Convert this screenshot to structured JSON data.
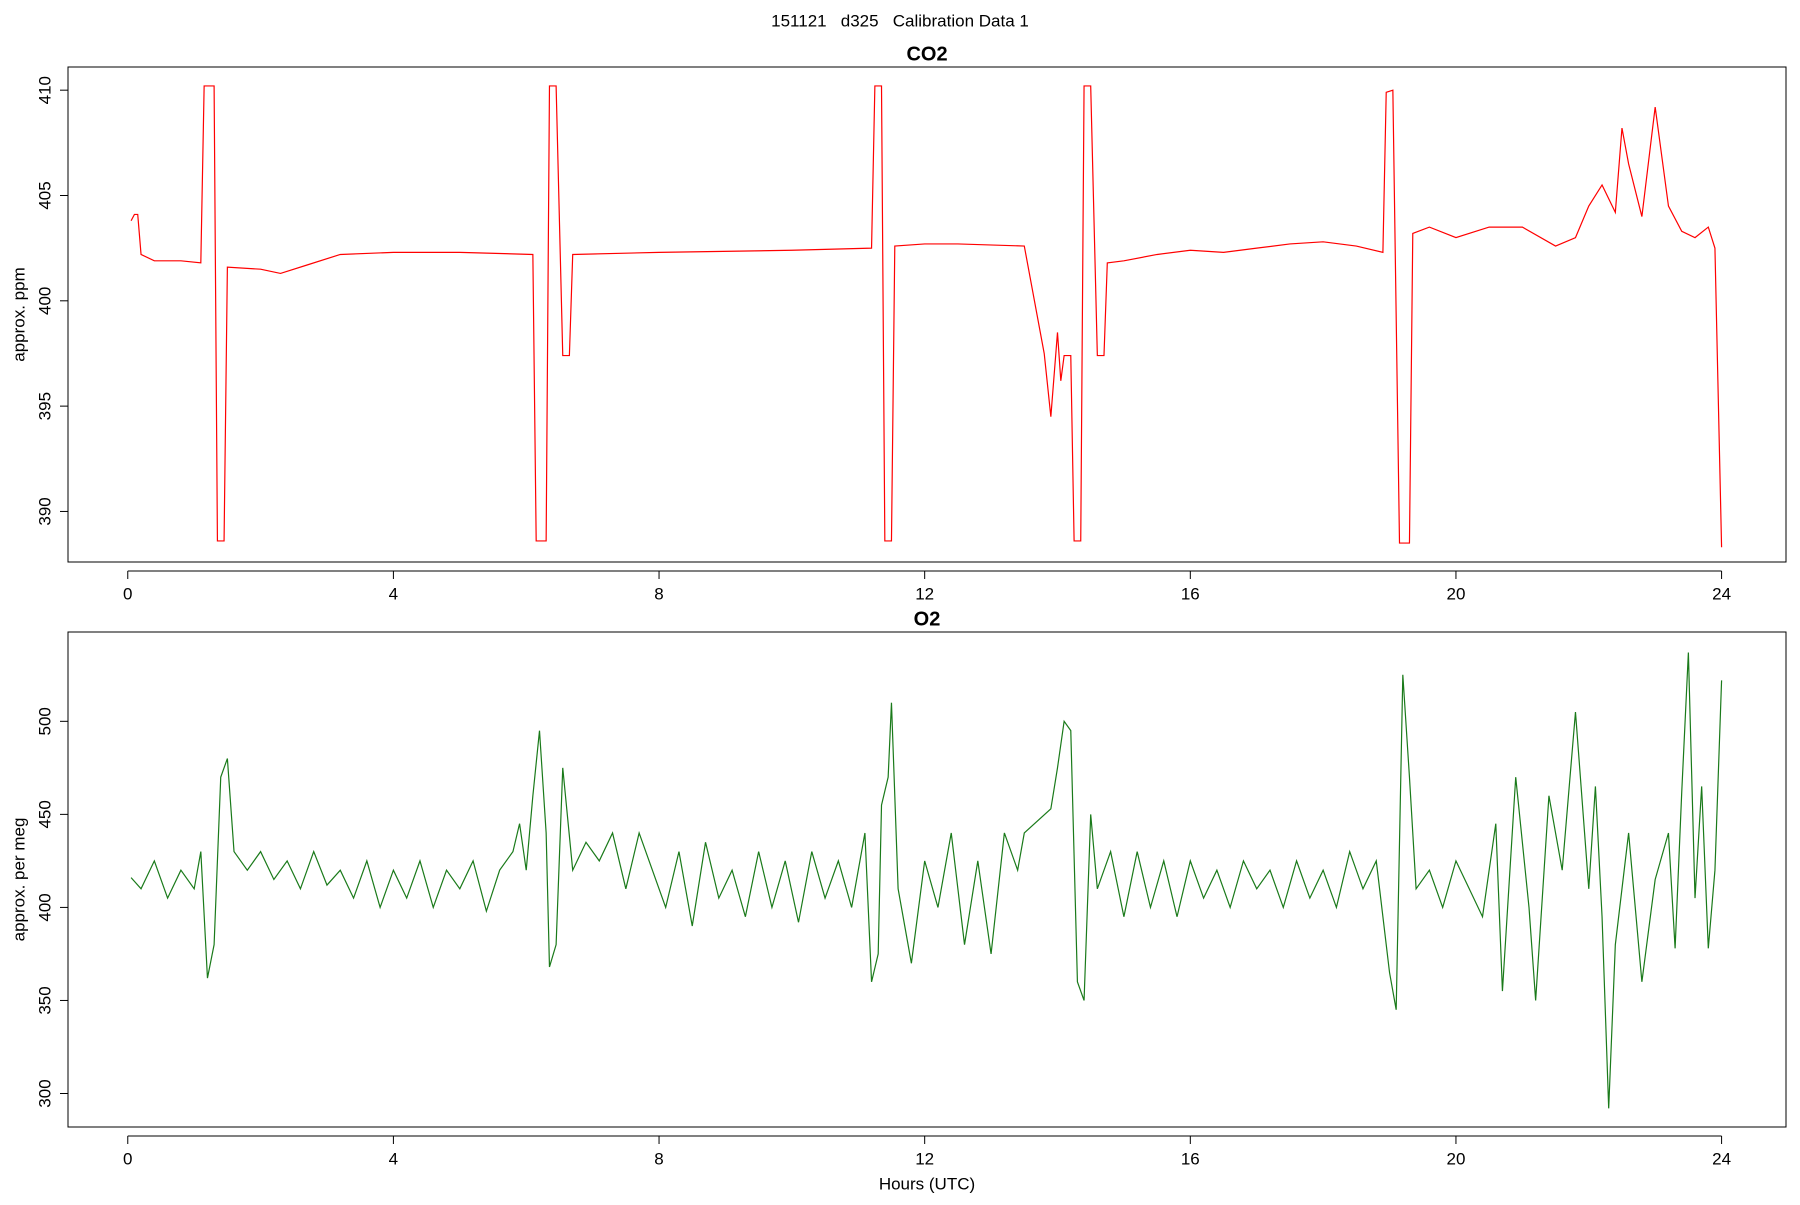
{
  "title": "151121   d325   Calibration Data 1",
  "chart_data": [
    {
      "type": "line",
      "title": "CO2",
      "ylabel": "approx. ppm",
      "color": "#ff0000",
      "xlim": [
        -0.9,
        24.97
      ],
      "ylim": [
        387.6,
        411.1
      ],
      "xticks": [
        0,
        4,
        8,
        12,
        16,
        20,
        24
      ],
      "yticks": [
        390,
        395,
        400,
        405,
        410
      ],
      "x": [
        0.05,
        0.1,
        0.15,
        0.2,
        0.4,
        0.8,
        1.1,
        1.15,
        1.3,
        1.35,
        1.45,
        1.5,
        2.0,
        2.3,
        2.7,
        3.2,
        4.0,
        5.0,
        6.1,
        6.15,
        6.3,
        6.35,
        6.45,
        6.55,
        6.65,
        6.7,
        8.0,
        10.0,
        11.2,
        11.25,
        11.35,
        11.4,
        11.5,
        11.55,
        12.0,
        12.5,
        13.5,
        13.8,
        13.9,
        14.0,
        14.05,
        14.1,
        14.2,
        14.25,
        14.35,
        14.4,
        14.5,
        14.6,
        14.7,
        14.75,
        15.0,
        15.5,
        16.0,
        16.5,
        17.0,
        17.5,
        18.0,
        18.5,
        18.9,
        18.95,
        19.05,
        19.15,
        19.3,
        19.35,
        19.6,
        20.0,
        20.5,
        21.0,
        21.5,
        21.8,
        22.0,
        22.2,
        22.4,
        22.5,
        22.6,
        22.8,
        23.0,
        23.2,
        23.4,
        23.6,
        23.8,
        23.9,
        24.0
      ],
      "values": [
        403.8,
        404.1,
        404.1,
        402.2,
        401.9,
        401.9,
        401.8,
        410.2,
        410.2,
        388.6,
        388.6,
        401.6,
        401.5,
        401.3,
        401.7,
        402.2,
        402.3,
        402.3,
        402.2,
        388.6,
        388.6,
        410.2,
        410.2,
        397.4,
        397.4,
        402.2,
        402.3,
        402.4,
        402.5,
        410.2,
        410.2,
        388.6,
        388.6,
        402.6,
        402.7,
        402.7,
        402.6,
        397.5,
        394.5,
        398.5,
        396.2,
        397.4,
        397.4,
        388.6,
        388.6,
        410.2,
        410.2,
        397.4,
        397.4,
        401.8,
        401.9,
        402.2,
        402.4,
        402.3,
        402.5,
        402.7,
        402.8,
        402.6,
        402.3,
        409.9,
        410.0,
        388.5,
        388.5,
        403.2,
        403.5,
        403.0,
        403.5,
        403.5,
        402.6,
        403.0,
        404.5,
        405.5,
        404.2,
        408.2,
        406.5,
        404.0,
        409.2,
        404.5,
        403.3,
        403.0,
        403.5,
        402.5,
        388.3
      ]
    },
    {
      "type": "line",
      "title": "O2",
      "ylabel": "approx. per meg",
      "xlabel": "Hours (UTC)",
      "color": "#1a7a1a",
      "xlim": [
        -0.9,
        24.97
      ],
      "ylim": [
        282,
        548
      ],
      "xticks": [
        0,
        4,
        8,
        12,
        16,
        20,
        24
      ],
      "yticks": [
        300,
        350,
        400,
        450,
        500
      ],
      "x": [
        0.05,
        0.2,
        0.4,
        0.6,
        0.8,
        1.0,
        1.1,
        1.2,
        1.3,
        1.4,
        1.5,
        1.6,
        1.8,
        2.0,
        2.2,
        2.4,
        2.6,
        2.8,
        3.0,
        3.2,
        3.4,
        3.6,
        3.8,
        4.0,
        4.2,
        4.4,
        4.6,
        4.8,
        5.0,
        5.2,
        5.4,
        5.6,
        5.8,
        5.9,
        6.0,
        6.1,
        6.2,
        6.3,
        6.35,
        6.45,
        6.55,
        6.7,
        6.9,
        7.1,
        7.3,
        7.5,
        7.7,
        7.9,
        8.1,
        8.3,
        8.5,
        8.7,
        8.9,
        9.1,
        9.3,
        9.5,
        9.7,
        9.9,
        10.1,
        10.3,
        10.5,
        10.7,
        10.9,
        11.1,
        11.2,
        11.3,
        11.35,
        11.45,
        11.5,
        11.6,
        11.8,
        12.0,
        12.2,
        12.4,
        12.6,
        12.8,
        13.0,
        13.2,
        13.4,
        13.5,
        13.9,
        14.0,
        14.1,
        14.2,
        14.3,
        14.4,
        14.5,
        14.6,
        14.8,
        15.0,
        15.2,
        15.4,
        15.6,
        15.8,
        16.0,
        16.2,
        16.4,
        16.6,
        16.8,
        17.0,
        17.2,
        17.4,
        17.6,
        17.8,
        18.0,
        18.2,
        18.4,
        18.6,
        18.8,
        19.0,
        19.1,
        19.2,
        19.3,
        19.4,
        19.6,
        19.8,
        20.0,
        20.2,
        20.4,
        20.6,
        20.7,
        20.9,
        21.1,
        21.2,
        21.4,
        21.6,
        21.8,
        22.0,
        22.1,
        22.2,
        22.3,
        22.4,
        22.6,
        22.8,
        23.0,
        23.2,
        23.3,
        23.4,
        23.5,
        23.6,
        23.7,
        23.8,
        23.9,
        24.0
      ],
      "values": [
        416,
        410,
        425,
        405,
        420,
        410,
        430,
        362,
        380,
        470,
        480,
        430,
        420,
        430,
        415,
        425,
        410,
        430,
        412,
        420,
        405,
        425,
        400,
        420,
        405,
        425,
        400,
        420,
        410,
        425,
        398,
        420,
        430,
        445,
        420,
        460,
        495,
        440,
        368,
        380,
        475,
        420,
        435,
        425,
        440,
        410,
        440,
        420,
        400,
        430,
        390,
        435,
        405,
        420,
        395,
        430,
        400,
        425,
        392,
        430,
        405,
        425,
        400,
        440,
        360,
        375,
        455,
        470,
        510,
        410,
        370,
        425,
        400,
        440,
        380,
        425,
        375,
        440,
        420,
        440,
        453,
        475,
        500,
        495,
        360,
        350,
        450,
        410,
        430,
        395,
        430,
        400,
        425,
        395,
        425,
        405,
        420,
        400,
        425,
        410,
        420,
        400,
        425,
        405,
        420,
        400,
        430,
        410,
        425,
        365,
        345,
        525,
        470,
        410,
        420,
        400,
        425,
        410,
        395,
        445,
        355,
        470,
        400,
        350,
        460,
        420,
        505,
        410,
        465,
        395,
        292,
        380,
        440,
        360,
        415,
        440,
        378,
        462,
        537,
        405,
        465,
        378,
        420,
        522
      ]
    }
  ]
}
